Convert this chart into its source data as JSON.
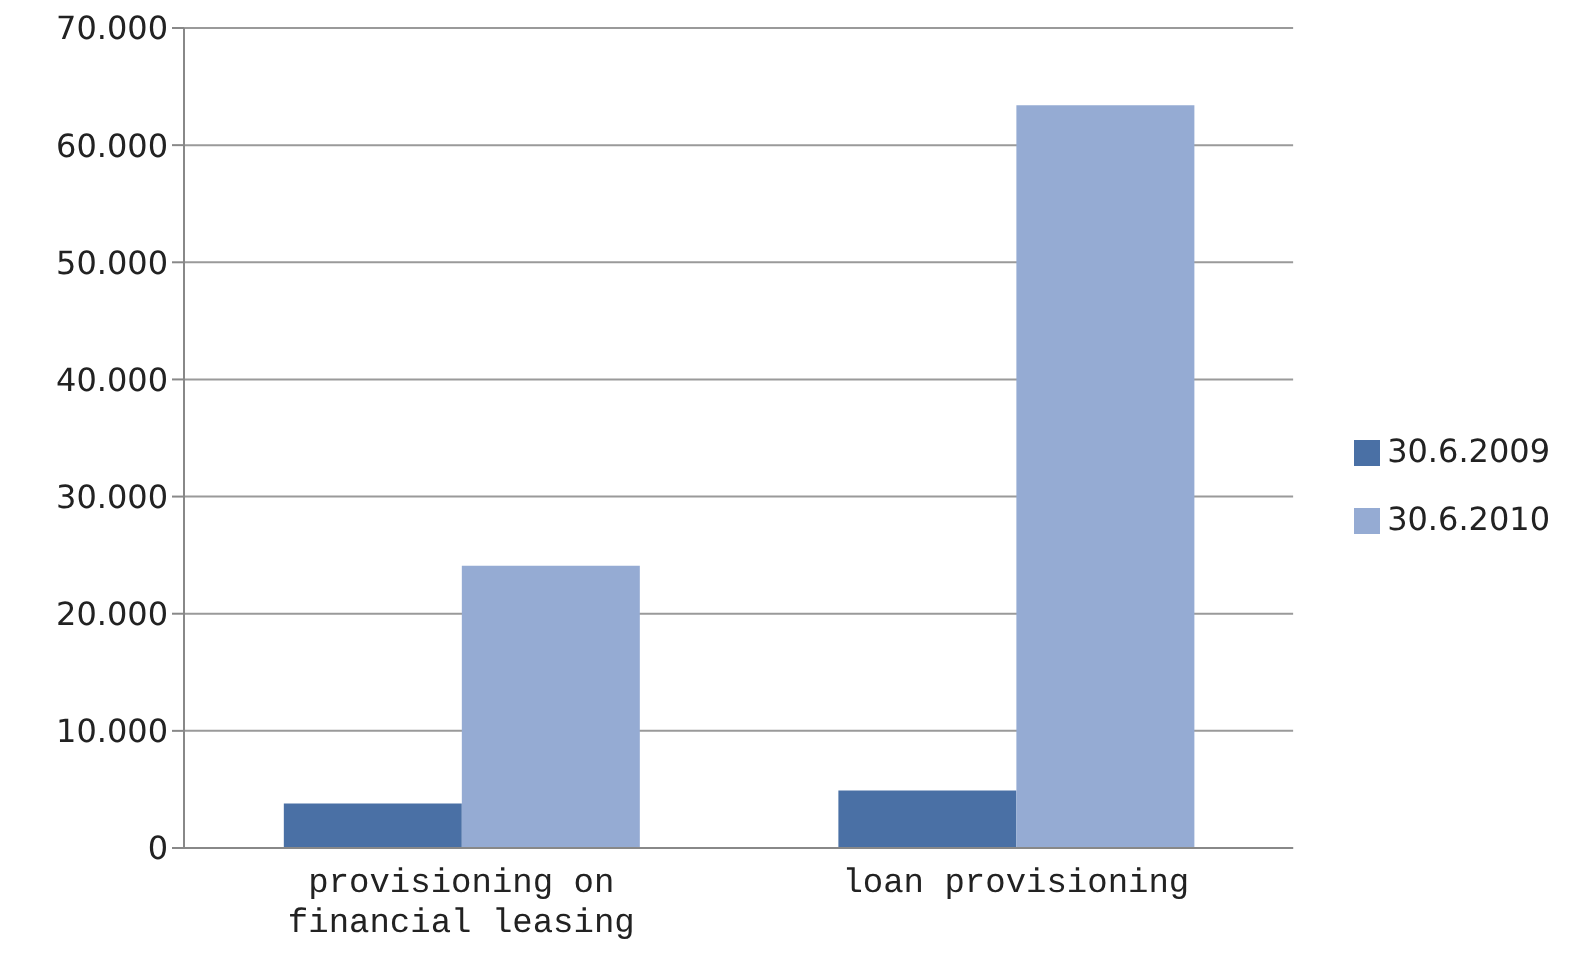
{
  "chart_data": {
    "type": "bar",
    "categories": [
      "provisioning on financial leasing",
      "loan provisioning"
    ],
    "series": [
      {
        "name": "30.6.2009",
        "color": "#4a70a5",
        "values": [
          3800,
          4900
        ]
      },
      {
        "name": "30.6.2010",
        "color": "#95abd3",
        "values": [
          24100,
          63400
        ]
      }
    ],
    "ylim": [
      0,
      70000
    ],
    "yticks": [
      {
        "value": 0,
        "label": "0"
      },
      {
        "value": 10000,
        "label": "10.000"
      },
      {
        "value": 20000,
        "label": "20.000"
      },
      {
        "value": 30000,
        "label": "30.000"
      },
      {
        "value": 40000,
        "label": "40.000"
      },
      {
        "value": 50000,
        "label": "50.000"
      },
      {
        "value": 60000,
        "label": "60.000"
      },
      {
        "value": 70000,
        "label": "70.000"
      }
    ],
    "grid": "y",
    "legend": "right"
  }
}
